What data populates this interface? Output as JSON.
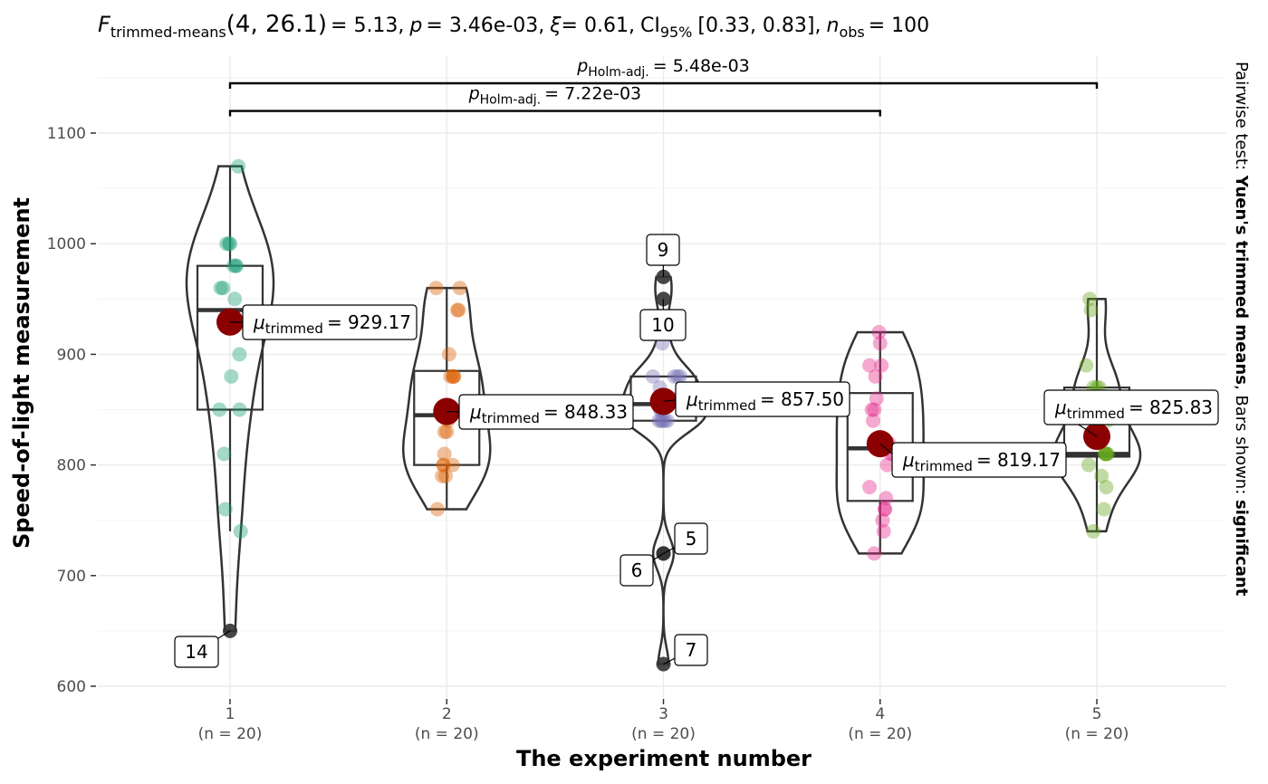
{
  "subtitle": {
    "stat_symbol": "F",
    "stat_subscript": "trimmed-means",
    "df": "(4, 26.1)",
    "statistic": "= 5.13,",
    "p_symbol": "p",
    "p_value": "= 3.46e-03,",
    "effsize_symbol": "ξ",
    "effsize_value": "= 0.61,",
    "ci_symbol": "CI",
    "ci_subscript": "95%",
    "ci_value": "[0.33, 0.83],",
    "n_symbol": "n",
    "n_subscript": "obs",
    "n_value": "= 100"
  },
  "caption": {
    "prefix": "Pairwise test: ",
    "test_name": "Yuen's trimmed means",
    "middle": ", Bars shown: ",
    "bars_shown": "significant"
  },
  "pairwise": [
    {
      "groups": [
        "1",
        "5"
      ],
      "p_symbol": "p",
      "p_subscript": "Holm-adj.",
      "p_value": "= 5.48e-03",
      "y": 1145
    },
    {
      "groups": [
        "1",
        "4"
      ],
      "p_symbol": "p",
      "p_subscript": "Holm-adj.",
      "p_value": "= 7.22e-03",
      "y": 1120
    }
  ],
  "colors": {
    "1": "#1B9E77",
    "2": "#D95F02",
    "3": "#7570B3",
    "4": "#E7298A",
    "5": "#66A61E",
    "mean_point": "#8B0000",
    "outlier_point": "#333333"
  },
  "chart_data": {
    "type": "violin-box-scatter",
    "xlabel": "The experiment number",
    "ylabel": "Speed-of-light measurement",
    "ylim": [
      590,
      1165
    ],
    "yticks": [
      600,
      700,
      800,
      900,
      1000,
      1100
    ],
    "grid": true,
    "categories": [
      "1",
      "2",
      "3",
      "4",
      "5"
    ],
    "counts": [
      "(n = 20)",
      "(n = 20)",
      "(n = 20)",
      "(n = 20)",
      "(n = 20)"
    ],
    "groups": [
      {
        "name": "1",
        "trimmed_mean": 929.17,
        "mean_label": "= 929.17",
        "mean_symbol": "μ",
        "mean_subscript": "trimmed",
        "box": {
          "q1": 850,
          "median": 940,
          "q3": 980,
          "whisker_low": 740,
          "whisker_high": 1070
        },
        "points": [
          850,
          740,
          900,
          1070,
          930,
          850,
          950,
          980,
          980,
          880,
          1000,
          980,
          930,
          650,
          760,
          810,
          1000,
          1000,
          960,
          960
        ],
        "outliers": [
          {
            "value": 650,
            "label": "14"
          }
        ]
      },
      {
        "name": "2",
        "trimmed_mean": 848.33,
        "mean_label": "= 848.33",
        "mean_symbol": "μ",
        "mean_subscript": "trimmed",
        "box": {
          "q1": 800,
          "median": 845,
          "q3": 885,
          "whisker_low": 760,
          "whisker_high": 960
        },
        "points": [
          960,
          940,
          960,
          940,
          880,
          800,
          850,
          880,
          900,
          840,
          830,
          790,
          810,
          880,
          880,
          830,
          800,
          790,
          760,
          800
        ],
        "outliers": []
      },
      {
        "name": "3",
        "trimmed_mean": 857.5,
        "mean_label": "= 857.50",
        "mean_symbol": "μ",
        "mean_subscript": "trimmed",
        "box": {
          "q1": 840,
          "median": 855,
          "q3": 880,
          "whisker_low": 840,
          "whisker_high": 880
        },
        "points": [
          880,
          880,
          880,
          860,
          720,
          720,
          620,
          860,
          970,
          950,
          880,
          910,
          850,
          870,
          840,
          840,
          850,
          840,
          840,
          840
        ],
        "outliers": [
          {
            "value": 970,
            "label": "9"
          },
          {
            "value": 950,
            "label": "10"
          },
          {
            "value": 720,
            "label": "5"
          },
          {
            "value": 720,
            "label": "6"
          },
          {
            "value": 620,
            "label": "7"
          }
        ]
      },
      {
        "name": "4",
        "trimmed_mean": 819.17,
        "mean_label": "= 819.17",
        "mean_symbol": "μ",
        "mean_subscript": "trimmed",
        "box": {
          "q1": 767.5,
          "median": 815,
          "q3": 865,
          "whisker_low": 720,
          "whisker_high": 920
        },
        "points": [
          890,
          810,
          810,
          820,
          800,
          770,
          760,
          740,
          750,
          760,
          910,
          920,
          890,
          860,
          880,
          720,
          840,
          850,
          850,
          780
        ],
        "outliers": []
      },
      {
        "name": "5",
        "trimmed_mean": 825.83,
        "mean_label": "= 825.83",
        "mean_symbol": "μ",
        "mean_subscript": "trimmed",
        "box": {
          "q1": 807.5,
          "median": 810,
          "q3": 870,
          "whisker_low": 740,
          "whisker_high": 950
        },
        "points": [
          890,
          840,
          780,
          810,
          760,
          810,
          790,
          810,
          820,
          850,
          870,
          870,
          810,
          740,
          810,
          940,
          950,
          800,
          810,
          870
        ],
        "outliers": []
      }
    ]
  }
}
